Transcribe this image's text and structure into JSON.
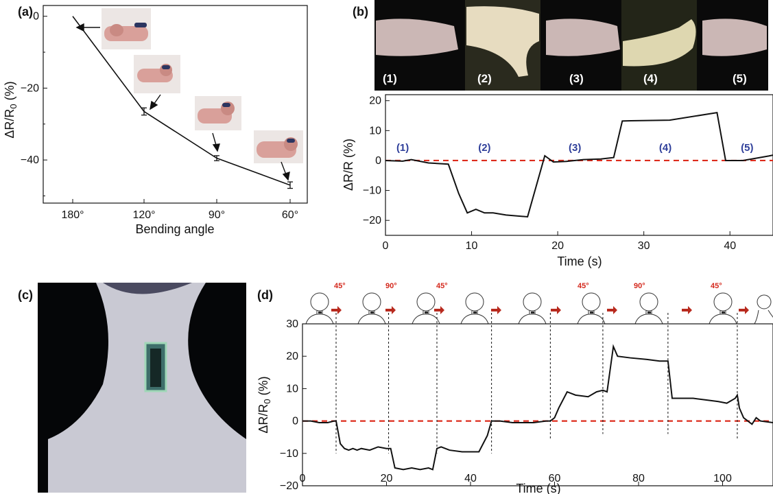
{
  "figure": {
    "panel_labels": [
      "(a)",
      "(b)",
      "(c)",
      "(d)"
    ],
    "colors": {
      "line": "#111111",
      "baseline": "#dd2b1c",
      "segment_label": "#2f3f9a",
      "angle_label": "#d4281c",
      "arrow": "#b82a1e"
    },
    "photo_a_icons": [
      "finger-photo-180",
      "finger-photo-120",
      "finger-photo-90",
      "finger-photo-60"
    ],
    "photo_b_labels": [
      "(1)",
      "(2)",
      "(3)",
      "(4)",
      "(5)"
    ],
    "d_angle_labels": [
      "45°",
      "90°",
      "45°",
      "45°",
      "90°",
      "45°"
    ],
    "c_icon": "neck-sensor-photo"
  },
  "chart_data": [
    {
      "panel": "(a)",
      "type": "line",
      "xlabel": "Bending angle",
      "ylabel": "ΔR/R0 (%)",
      "categories": [
        "180°",
        "120°",
        "90°",
        "60°"
      ],
      "values": [
        0,
        -26.5,
        -39.5,
        -47
      ],
      "error": [
        0,
        1.0,
        0.7,
        0.9
      ],
      "yticks": [
        0,
        -20,
        -40
      ],
      "ylim": [
        -52,
        3
      ]
    },
    {
      "panel": "(b)",
      "type": "line",
      "xlabel": "Time (s)",
      "ylabel": "ΔR/R (%)",
      "xlim": [
        0,
        45
      ],
      "ylim": [
        -25,
        22
      ],
      "xticks": [
        0,
        10,
        20,
        30,
        40
      ],
      "yticks": [
        20,
        10,
        0,
        -10,
        -20
      ],
      "baseline": 0,
      "segment_labels": [
        "(1)",
        "(2)",
        "(3)",
        "(4)",
        "(5)"
      ],
      "segment_label_x": [
        2,
        11.5,
        22,
        32.5,
        42
      ],
      "x": [
        0,
        2,
        3,
        5,
        7.3,
        8.5,
        9.5,
        10.5,
        11.5,
        12.5,
        14,
        16.5,
        18.5,
        19.5,
        21,
        23,
        25,
        26.5,
        27.5,
        28.5,
        33,
        38.5,
        39.5,
        40,
        41.5,
        44.5,
        45
      ],
      "y": [
        0,
        -0.2,
        0.3,
        -0.8,
        -1.2,
        -11,
        -17.5,
        -16.3,
        -17.5,
        -17.5,
        -18.2,
        -18.8,
        1.6,
        -0.5,
        -0.3,
        0.3,
        0.5,
        1,
        13.2,
        13.3,
        13.5,
        16,
        0,
        0,
        0,
        1.5,
        1.8
      ]
    },
    {
      "panel": "(d)",
      "type": "line",
      "xlabel": "Time (s)",
      "ylabel": "ΔR/R0 (%)",
      "xlim": [
        0,
        112
      ],
      "ylim": [
        -20,
        30
      ],
      "xticks": [
        0,
        20,
        40,
        60,
        80,
        100
      ],
      "yticks": [
        30,
        20,
        10,
        0,
        -10,
        -20
      ],
      "baseline": 0,
      "event_times": [
        8,
        20.5,
        32,
        45,
        59,
        71.5,
        87,
        103.5
      ],
      "x": [
        0,
        2,
        4,
        6,
        7.5,
        8,
        9,
        10,
        11,
        12,
        13,
        14,
        16,
        18,
        20,
        21,
        22,
        24,
        26,
        28,
        30,
        31,
        32,
        33,
        35,
        38,
        41,
        42,
        44,
        45,
        47,
        50,
        55,
        58,
        59,
        60,
        61,
        63,
        65,
        68,
        70,
        71.5,
        72.5,
        74,
        75,
        78,
        82,
        85,
        87,
        88,
        90,
        93,
        96,
        99,
        101,
        103,
        103.5,
        104,
        105,
        106,
        107,
        108,
        109,
        112
      ],
      "y": [
        0,
        0,
        -0.5,
        -0.5,
        0,
        0,
        -7,
        -8.5,
        -9,
        -8.5,
        -9,
        -8.5,
        -9,
        -8,
        -8.5,
        -8.5,
        -14.5,
        -15,
        -14.5,
        -15,
        -14.5,
        -15,
        -8.5,
        -8,
        -9,
        -9.5,
        -9.5,
        -9.5,
        -4.5,
        0,
        0,
        -0.5,
        -0.5,
        0,
        0,
        1,
        4,
        9,
        8,
        7.5,
        9,
        9.5,
        9,
        23,
        20,
        19.5,
        19,
        18.5,
        18.5,
        7,
        7,
        7,
        6.5,
        6,
        5.5,
        7,
        8,
        4,
        1,
        0,
        -1,
        1,
        0,
        -0.5
      ]
    }
  ]
}
